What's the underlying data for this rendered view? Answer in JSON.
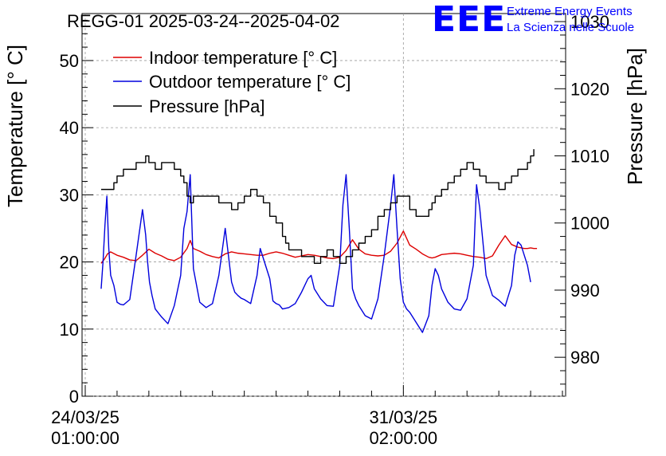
{
  "chart_data": {
    "type": "line",
    "title": "REGG-01 2025-03-24--2025-04-02",
    "ylabel": "Temperature [° C]",
    "y2label": "Pressure [hPa]",
    "xlabel": "",
    "ylim": [
      0,
      57
    ],
    "y2lim": [
      974.2,
      1031.2
    ],
    "xlim": [
      -0.05,
      7.55
    ],
    "x_unit": "days since 24/03/25 01:00:00",
    "yticks": [
      0,
      10,
      20,
      30,
      40,
      50
    ],
    "y2ticks": [
      980,
      990,
      1000,
      1010,
      1020,
      1030
    ],
    "xticks": [
      {
        "x": 0.0,
        "line1": "24/03/25",
        "line2": "01:00:00"
      },
      {
        "x": 5.0,
        "line1": "31/03/25",
        "line2": "02:00:00"
      }
    ],
    "grid": true,
    "legend": {
      "position": "top-left"
    },
    "branding": {
      "logo_text": "EEE",
      "line1": "Extreme Energy Events",
      "line2": "La Scienza nelle Scuole",
      "color": "#0000ff"
    },
    "series": [
      {
        "name": "Indoor temperature [° C]",
        "axis": "left",
        "color": "#dd0000",
        "x": [
          0.25,
          0.3,
          0.35,
          0.4,
          0.5,
          0.6,
          0.7,
          0.8,
          0.9,
          1.0,
          1.1,
          1.2,
          1.3,
          1.4,
          1.5,
          1.6,
          1.65,
          1.7,
          1.8,
          1.9,
          2.0,
          2.1,
          2.2,
          2.3,
          2.4,
          2.5,
          2.6,
          2.7,
          2.8,
          2.9,
          3.0,
          3.1,
          3.2,
          3.3,
          3.4,
          3.5,
          3.6,
          3.7,
          3.8,
          3.9,
          4.0,
          4.1,
          4.2,
          4.3,
          4.4,
          4.5,
          4.6,
          4.7,
          4.8,
          4.9,
          5.0,
          5.1,
          5.2,
          5.3,
          5.4,
          5.45,
          5.5,
          5.6,
          5.7,
          5.8,
          5.9,
          6.0,
          6.1,
          6.2,
          6.3,
          6.4,
          6.5,
          6.6,
          6.7,
          6.8,
          6.9,
          6.95,
          7.0,
          7.05,
          7.1
        ],
        "values": [
          19.8,
          20.4,
          21.2,
          21.5,
          21.0,
          20.7,
          20.3,
          20.2,
          21.0,
          21.9,
          21.3,
          20.9,
          20.4,
          20.2,
          20.7,
          22.0,
          23.2,
          22.0,
          21.6,
          21.1,
          20.8,
          20.6,
          21.2,
          21.5,
          21.3,
          21.2,
          21.1,
          21.0,
          21.0,
          21.3,
          21.5,
          21.3,
          21.0,
          20.7,
          20.9,
          21.1,
          21.0,
          20.8,
          20.6,
          20.5,
          20.7,
          21.7,
          23.3,
          21.9,
          21.2,
          21.0,
          20.9,
          21.0,
          21.6,
          22.8,
          24.6,
          22.5,
          21.9,
          21.2,
          20.7,
          20.6,
          20.7,
          21.1,
          21.2,
          21.3,
          21.2,
          21.0,
          20.8,
          20.7,
          20.5,
          20.9,
          22.5,
          23.9,
          22.6,
          22.2,
          22.0,
          22.0,
          22.1,
          22.0,
          22.0
        ]
      },
      {
        "name": "Outdoor temperature [° C]",
        "axis": "left",
        "color": "#0000dd",
        "x": [
          0.25,
          0.28,
          0.31,
          0.34,
          0.37,
          0.4,
          0.45,
          0.5,
          0.55,
          0.6,
          0.7,
          0.8,
          0.9,
          0.95,
          0.98,
          1.01,
          1.05,
          1.1,
          1.2,
          1.3,
          1.4,
          1.5,
          1.55,
          1.6,
          1.65,
          1.7,
          1.75,
          1.8,
          1.9,
          2.0,
          2.1,
          2.2,
          2.3,
          2.35,
          2.4,
          2.45,
          2.5,
          2.6,
          2.7,
          2.75,
          2.8,
          2.9,
          2.95,
          3.0,
          3.05,
          3.1,
          3.2,
          3.3,
          3.4,
          3.5,
          3.55,
          3.6,
          3.7,
          3.8,
          3.9,
          4.0,
          4.05,
          4.1,
          4.15,
          4.2,
          4.25,
          4.3,
          4.4,
          4.5,
          4.6,
          4.7,
          4.8,
          4.85,
          4.9,
          4.95,
          5.0,
          5.05,
          5.1,
          5.2,
          5.3,
          5.4,
          5.45,
          5.5,
          5.55,
          5.6,
          5.7,
          5.8,
          5.9,
          6.0,
          6.1,
          6.15,
          6.2,
          6.3,
          6.4,
          6.5,
          6.6,
          6.7,
          6.75,
          6.8,
          6.85,
          6.9,
          6.95,
          7.0
        ],
        "values": [
          16.0,
          20.1,
          25.5,
          29.8,
          22.0,
          18.0,
          16.5,
          14.0,
          13.7,
          13.6,
          14.4,
          21.0,
          27.8,
          24.0,
          20.0,
          17.0,
          15.0,
          13.0,
          11.8,
          10.8,
          13.5,
          18.0,
          25.0,
          27.5,
          33.0,
          19.0,
          16.5,
          14.0,
          13.2,
          13.8,
          18.0,
          25.0,
          17.0,
          15.5,
          15.0,
          14.6,
          14.4,
          13.8,
          18.0,
          22.0,
          20.5,
          17.5,
          14.2,
          13.8,
          13.6,
          13.0,
          13.2,
          13.8,
          15.5,
          17.5,
          18.0,
          16.0,
          14.5,
          13.5,
          13.4,
          19.5,
          28.5,
          33.0,
          25.0,
          16.0,
          14.5,
          13.5,
          12.0,
          11.5,
          14.5,
          21.0,
          28.5,
          33.0,
          25.0,
          17.5,
          14.0,
          13.0,
          12.5,
          11.0,
          9.5,
          12.0,
          16.5,
          19.0,
          18.0,
          16.0,
          14.0,
          13.0,
          12.8,
          14.5,
          19.5,
          31.5,
          28.0,
          18.0,
          15.0,
          14.3,
          13.4,
          16.5,
          21.0,
          23.0,
          22.5,
          21.0,
          19.5,
          17.0
        ]
      },
      {
        "name": "Pressure [hPa]",
        "axis": "right",
        "color": "#000000",
        "x": [
          0.25,
          0.4,
          0.45,
          0.5,
          0.6,
          0.7,
          0.8,
          0.9,
          0.95,
          1.0,
          1.1,
          1.2,
          1.3,
          1.35,
          1.4,
          1.45,
          1.5,
          1.55,
          1.6,
          1.65,
          1.7,
          1.8,
          1.9,
          2.0,
          2.1,
          2.2,
          2.3,
          2.4,
          2.5,
          2.6,
          2.7,
          2.8,
          2.9,
          3.0,
          3.1,
          3.15,
          3.2,
          3.3,
          3.4,
          3.5,
          3.6,
          3.7,
          3.8,
          3.9,
          4.0,
          4.1,
          4.2,
          4.3,
          4.4,
          4.5,
          4.6,
          4.7,
          4.8,
          4.9,
          5.0,
          5.1,
          5.2,
          5.3,
          5.4,
          5.45,
          5.5,
          5.6,
          5.7,
          5.8,
          5.9,
          6.0,
          6.1,
          6.2,
          6.3,
          6.4,
          6.5,
          6.6,
          6.7,
          6.8,
          6.9,
          6.95,
          7.0,
          7.05
        ],
        "values": [
          1005,
          1005,
          1006,
          1007,
          1008,
          1008,
          1009,
          1009,
          1010,
          1009,
          1008,
          1009,
          1009,
          1009,
          1008,
          1008,
          1007,
          1006,
          1004,
          1003,
          1004,
          1004,
          1004,
          1004,
          1003,
          1003,
          1002,
          1003,
          1004,
          1005,
          1004,
          1003,
          1001,
          1000,
          998,
          997,
          996,
          996,
          995,
          995,
          994,
          995,
          996,
          995,
          994,
          995,
          996,
          997,
          998,
          999,
          1001,
          1002,
          1003,
          1004,
          1004,
          1002,
          1001,
          1001,
          1002,
          1003,
          1004,
          1005,
          1006,
          1007,
          1008,
          1009,
          1008,
          1007,
          1006,
          1006,
          1005,
          1006,
          1007,
          1008,
          1008,
          1009,
          1010,
          1011
        ]
      }
    ]
  }
}
